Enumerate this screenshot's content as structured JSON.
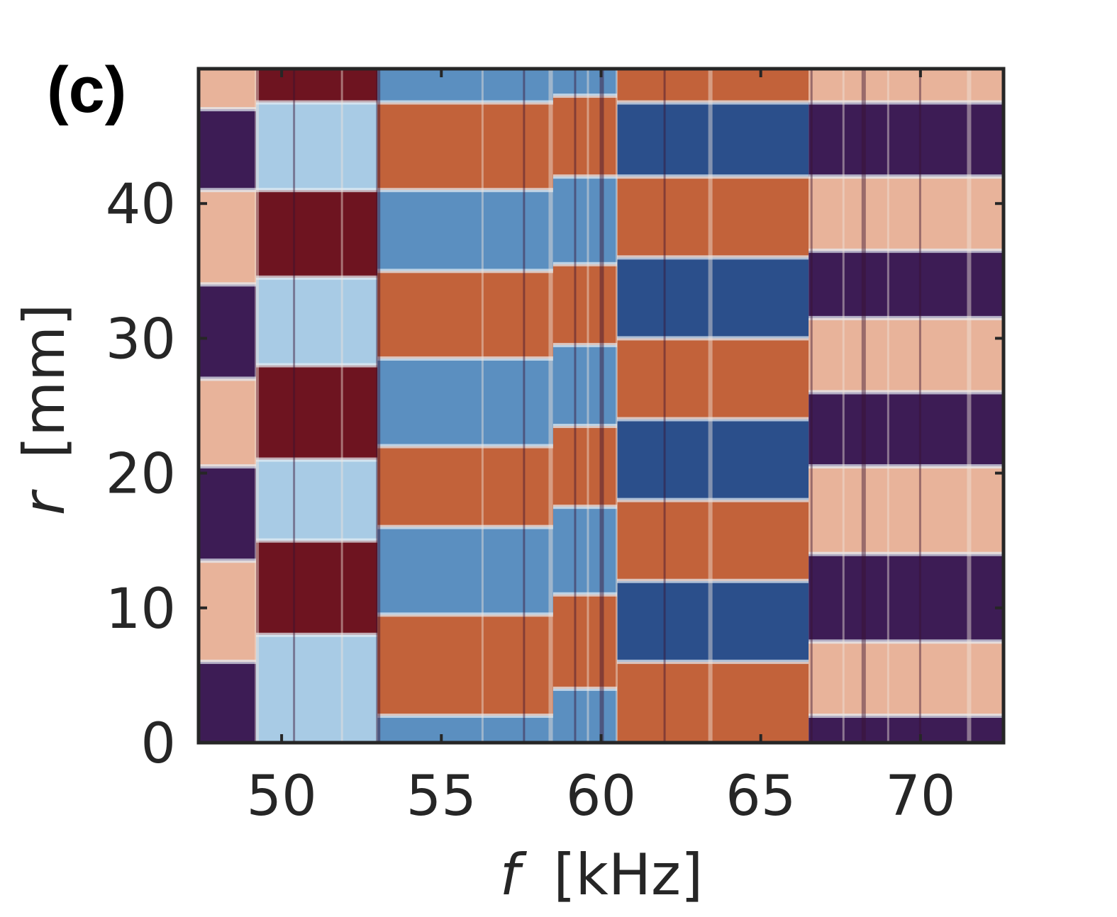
{
  "panel_label": "(c)",
  "chart_data": {
    "type": "heatmap",
    "xlabel": {
      "symbol": "f",
      "unit": "[kHz]"
    },
    "ylabel": {
      "symbol": "r",
      "unit": "[mm]"
    },
    "xlim": [
      47.4,
      72.6
    ],
    "ylim": [
      0,
      50
    ],
    "xticks": [
      50,
      55,
      60,
      65,
      70
    ],
    "yticks": [
      0,
      10,
      20,
      30,
      40
    ],
    "grid": false,
    "colorscale": {
      "low_neg": "#3d1c55",
      "dark_blue": "#2b4f8b",
      "mid_blue": "#5b8fc0",
      "light_blue": "#a8cbe5",
      "light_red": "#e8b39a",
      "mid_red": "#c2623a",
      "dark_red": "#6e1420"
    },
    "phase_bands": [
      {
        "f_start": 47.4,
        "f_end": 49.2,
        "boundaries_r": [
          6,
          13.5,
          20.5,
          27,
          34,
          41,
          47
        ],
        "first_band": "neg"
      },
      {
        "f_start": 49.2,
        "f_end": 53.0,
        "boundaries_r": [
          8,
          15,
          21,
          28,
          34.5,
          41,
          47.5
        ],
        "first_band": "light_blue"
      },
      {
        "f_start": 53.0,
        "f_end": 58.5,
        "boundaries_r": [
          2,
          9.5,
          16,
          22,
          28.5,
          35,
          41,
          47.5
        ],
        "first_band": "blue"
      },
      {
        "f_start": 58.5,
        "f_end": 60.5,
        "boundaries_r": [
          4,
          11,
          17.5,
          23.5,
          29.5,
          35.5,
          42,
          48
        ],
        "first_band": "blue"
      },
      {
        "f_start": 60.5,
        "f_end": 66.5,
        "boundaries_r": [
          6,
          12,
          18,
          24,
          30,
          36,
          42,
          47.5
        ],
        "first_band": "red"
      },
      {
        "f_start": 66.5,
        "f_end": 72.6,
        "boundaries_r": [
          2,
          7.5,
          14,
          20.5,
          26,
          31.5,
          36.5,
          42,
          47.5
        ],
        "first_band": "neg"
      }
    ],
    "vertical_streaks_f": [
      49.2,
      50.4,
      51.9,
      53.0,
      56.3,
      57.6,
      58.4,
      59.2,
      59.6,
      60.0,
      60.5,
      62.0,
      63.4,
      66.6,
      67.6,
      68.2,
      69.0,
      70.0,
      71.5
    ]
  }
}
